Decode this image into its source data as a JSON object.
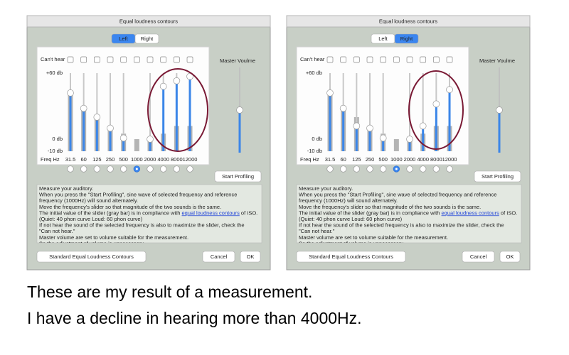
{
  "windows": [
    {
      "title": "Equal loudness contours",
      "tabs": [
        "Left",
        "Right"
      ],
      "selected_tab": 0,
      "cant_hear": "Can't hear",
      "scale_labels": [
        "+60 db",
        "0 db",
        "-10 db"
      ],
      "freq_label": "Freq Hz",
      "frequencies": [
        "31.5",
        "60",
        "125",
        "250",
        "500",
        "1000",
        "2000",
        "4000",
        "8000",
        "12000"
      ],
      "levels": [
        42,
        28,
        20,
        10,
        1,
        null,
        0,
        48,
        53,
        57
      ],
      "defaults": [
        40,
        28,
        20,
        12,
        5,
        0,
        0,
        5,
        12,
        12
      ],
      "selected_frequency": 5,
      "master_label": "Master Voulme",
      "master_level": 0.5,
      "start_button": "Start Profiling",
      "description": [
        "Measure your auditory.",
        "When you press the \"Start Profiling\", sine wave of selected frequency and reference",
        "frequency (1000Hz) will sound alternately.",
        "Move the frequency's slider so that magnitude of the two sounds is the same.",
        {
          "before": "The initial value of the slider (gray bar) is in compliance with ",
          "link": "equal loudness contours",
          "after": " of ISO."
        },
        "(Quiet: 40 phon curve Loud: 60 phon curve)",
        "If not hear the sound of the selected frequency is also to maximize the slider, check the",
        "\"Can not hear.\"",
        "Master volume are set to volume suitable for the measurement.",
        "So the adjustment of volume is unnecessary."
      ],
      "buttons": [
        "Standard Equal Loudness Contours",
        "Cancel",
        "OK"
      ]
    },
    {
      "title": "Equal loudness contours",
      "tabs": [
        "Left",
        "Right"
      ],
      "selected_tab": 1,
      "cant_hear": "Can't hear",
      "scale_labels": [
        "+60 db",
        "0 db",
        "-10 db"
      ],
      "freq_label": "Freq Hz",
      "frequencies": [
        "31.5",
        "60",
        "125",
        "250",
        "500",
        "1000",
        "2000",
        "4000",
        "8000",
        "12000"
      ],
      "levels": [
        42,
        28,
        12,
        10,
        1,
        null,
        0,
        12,
        32,
        45
      ],
      "defaults": [
        40,
        28,
        20,
        12,
        5,
        0,
        0,
        5,
        12,
        12
      ],
      "selected_frequency": 5,
      "master_label": "Master Voulme",
      "master_level": 0.5,
      "start_button": "Start Profiling",
      "description": [
        "Measure your auditory.",
        "When you press the \"Start Profiling\", sine wave of selected frequency and reference",
        "frequency (1000Hz) will sound alternately.",
        "Move the frequency's slider so that magnitude of the two sounds is the same.",
        {
          "before": "The initial value of the slider (gray bar) is in compliance with ",
          "link": "equal loudness contours",
          "after": " of ISO."
        },
        "(Quiet: 40 phon curve Loud: 60 phon curve)",
        "If not hear the sound of the selected frequency is also to maximize the slider, check the",
        "\"Can not hear.\"",
        "Master volume are set to volume suitable for the measurement.",
        "So the adjustment of volume is unnecessary."
      ],
      "buttons": [
        "Standard Equal Loudness Contours",
        "Cancel",
        "OK"
      ]
    }
  ],
  "caption": [
    "These are my result of a measurement.",
    "I have a decline in hearing more than 4000Hz."
  ]
}
